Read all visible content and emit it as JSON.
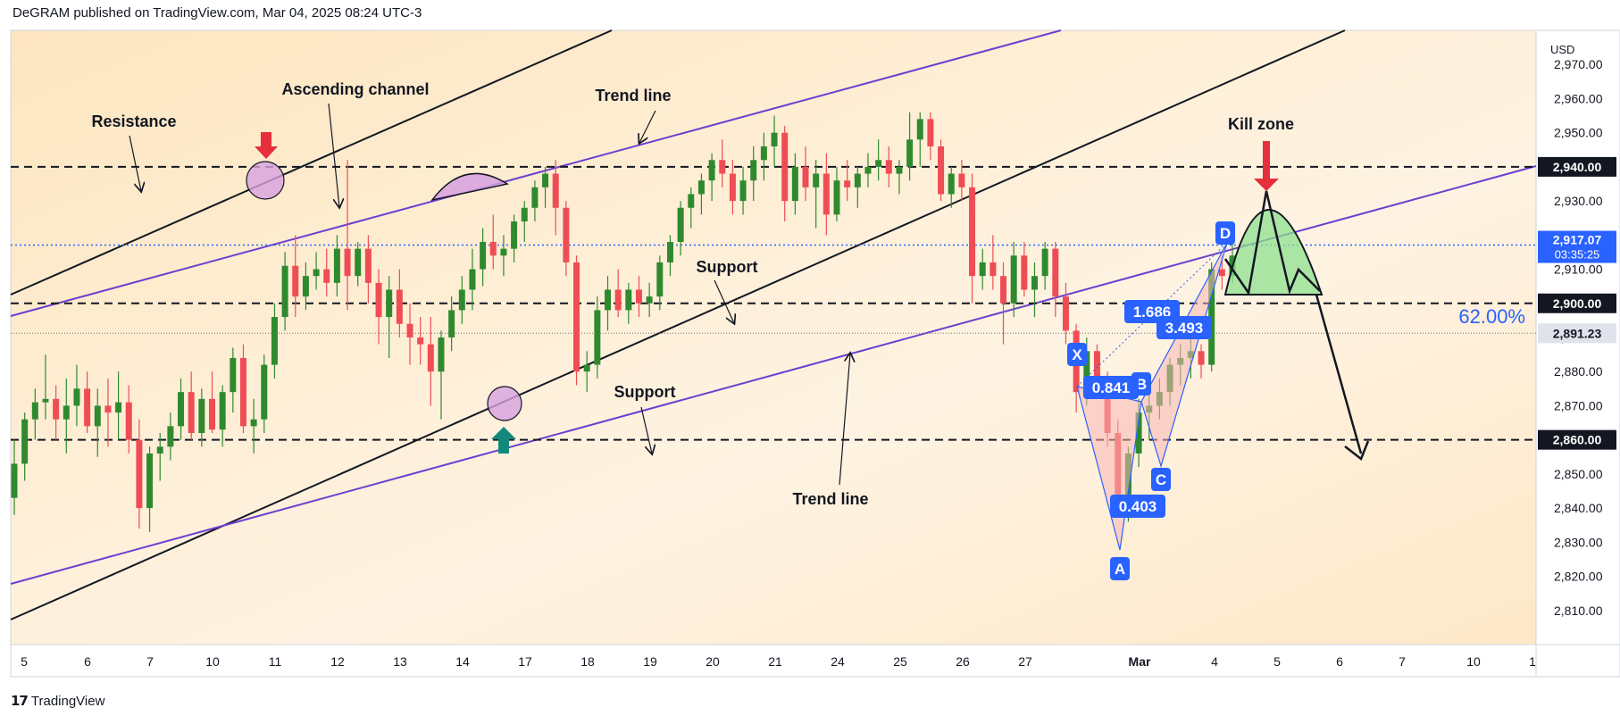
{
  "header": {
    "published": "DeGRAM published on TradingView.com, Mar 04, 2025 08:24 UTC-3"
  },
  "footer": {
    "brand": "TradingView",
    "logo": "tradingview-logo"
  },
  "colors": {
    "up": "#2f8a2f",
    "down": "#ef4d55",
    "purple": "#6c3fd0",
    "blue_label": "#2962ff",
    "bg_warm": "#fde7c6",
    "kill_zone": "#8fe08f",
    "red_arrow": "#e62e3c",
    "green_arrow": "#13897c"
  },
  "chart_data": {
    "type": "candlestick",
    "currency": "USD",
    "title": "",
    "ylim": [
      2800,
      2980
    ],
    "y_ticks": [
      "2,810.00",
      "2,820.00",
      "2,830.00",
      "2,840.00",
      "2,850.00",
      "2,860.00",
      "2,870.00",
      "2,880.00",
      "2,890.00",
      "2,900.00",
      "2,910.00",
      "2,920.00",
      "2,930.00",
      "2,940.00",
      "2,950.00",
      "2,960.00",
      "2,970.00"
    ],
    "x_ticks": [
      "5",
      "6",
      "7",
      "10",
      "11",
      "12",
      "13",
      "14",
      "17",
      "18",
      "19",
      "20",
      "21",
      "24",
      "25",
      "26",
      "27",
      "Mar",
      "4",
      "5",
      "6",
      "7",
      "10",
      "1"
    ],
    "price_labels": [
      {
        "value": 2940.0,
        "text": "2,940.00",
        "style": "black"
      },
      {
        "value": 2900.0,
        "text": "2,900.00",
        "style": "black"
      },
      {
        "value": 2891.23,
        "text": "2,891.23",
        "style": "gray"
      },
      {
        "value": 2860.0,
        "text": "2,860.00",
        "style": "black"
      },
      {
        "value": 2917.07,
        "text": "2,917.07",
        "sub": "03:35:25",
        "style": "blue"
      }
    ],
    "horizontal_levels": [
      2940,
      2900,
      2860
    ],
    "current_price": 2917.07,
    "annotations": [
      "Resistance",
      "Ascending channel",
      "Trend line",
      "Support",
      "Support",
      "Trend line",
      "Kill zone"
    ],
    "harmonic_points": {
      "X": "X",
      "A": "A",
      "B": "B",
      "C": "C",
      "D": "D"
    },
    "harmonic_ratios": [
      "0.841",
      "0.403",
      "1.686",
      "3.493"
    ],
    "fib_level": "62.00%",
    "candles": [
      [
        2843,
        2860,
        2838,
        2853
      ],
      [
        2853,
        2868,
        2848,
        2866
      ],
      [
        2866,
        2875,
        2860,
        2871
      ],
      [
        2871,
        2885,
        2866,
        2872
      ],
      [
        2872,
        2876,
        2860,
        2866
      ],
      [
        2866,
        2878,
        2856,
        2870
      ],
      [
        2870,
        2882,
        2864,
        2875
      ],
      [
        2875,
        2880,
        2862,
        2864
      ],
      [
        2864,
        2875,
        2855,
        2870
      ],
      [
        2870,
        2878,
        2858,
        2868
      ],
      [
        2868,
        2880,
        2860,
        2871
      ],
      [
        2871,
        2876,
        2856,
        2860
      ],
      [
        2860,
        2866,
        2834,
        2840
      ],
      [
        2840,
        2858,
        2833,
        2856
      ],
      [
        2856,
        2862,
        2848,
        2858
      ],
      [
        2858,
        2868,
        2854,
        2864
      ],
      [
        2864,
        2878,
        2860,
        2874
      ],
      [
        2874,
        2880,
        2860,
        2862
      ],
      [
        2862,
        2875,
        2858,
        2872
      ],
      [
        2872,
        2880,
        2862,
        2863
      ],
      [
        2863,
        2876,
        2858,
        2874
      ],
      [
        2874,
        2887,
        2868,
        2884
      ],
      [
        2884,
        2888,
        2862,
        2864
      ],
      [
        2864,
        2872,
        2856,
        2866
      ],
      [
        2866,
        2885,
        2862,
        2882
      ],
      [
        2882,
        2900,
        2878,
        2896
      ],
      [
        2896,
        2915,
        2892,
        2911
      ],
      [
        2911,
        2920,
        2896,
        2902
      ],
      [
        2902,
        2912,
        2898,
        2908
      ],
      [
        2908,
        2915,
        2904,
        2910
      ],
      [
        2910,
        2916,
        2902,
        2906
      ],
      [
        2906,
        2920,
        2902,
        2916
      ],
      [
        2916,
        2942,
        2898,
        2908
      ],
      [
        2908,
        2918,
        2905,
        2916
      ],
      [
        2916,
        2920,
        2900,
        2906
      ],
      [
        2906,
        2910,
        2888,
        2896
      ],
      [
        2896,
        2908,
        2884,
        2904
      ],
      [
        2904,
        2910,
        2890,
        2894
      ],
      [
        2894,
        2900,
        2882,
        2890
      ],
      [
        2890,
        2896,
        2882,
        2888
      ],
      [
        2888,
        2896,
        2870,
        2880
      ],
      [
        2880,
        2892,
        2866,
        2890
      ],
      [
        2890,
        2902,
        2886,
        2898
      ],
      [
        2898,
        2908,
        2894,
        2904
      ],
      [
        2904,
        2916,
        2898,
        2910
      ],
      [
        2910,
        2922,
        2905,
        2918
      ],
      [
        2918,
        2926,
        2910,
        2914
      ],
      [
        2914,
        2920,
        2908,
        2916
      ],
      [
        2916,
        2926,
        2912,
        2924
      ],
      [
        2924,
        2930,
        2918,
        2928
      ],
      [
        2928,
        2936,
        2924,
        2934
      ],
      [
        2934,
        2940,
        2928,
        2938
      ],
      [
        2938,
        2942,
        2920,
        2928
      ],
      [
        2928,
        2930,
        2908,
        2912
      ],
      [
        2912,
        2914,
        2876,
        2880
      ],
      [
        2880,
        2886,
        2874,
        2882
      ],
      [
        2882,
        2902,
        2878,
        2898
      ],
      [
        2898,
        2908,
        2892,
        2904
      ],
      [
        2904,
        2910,
        2896,
        2898
      ],
      [
        2898,
        2906,
        2894,
        2904
      ],
      [
        2904,
        2908,
        2896,
        2900
      ],
      [
        2900,
        2906,
        2896,
        2902
      ],
      [
        2902,
        2914,
        2898,
        2912
      ],
      [
        2912,
        2920,
        2908,
        2918
      ],
      [
        2918,
        2930,
        2914,
        2928
      ],
      [
        2928,
        2934,
        2922,
        2932
      ],
      [
        2932,
        2938,
        2926,
        2936
      ],
      [
        2936,
        2944,
        2930,
        2942
      ],
      [
        2942,
        2948,
        2934,
        2938
      ],
      [
        2938,
        2942,
        2926,
        2930
      ],
      [
        2930,
        2940,
        2926,
        2936
      ],
      [
        2936,
        2946,
        2930,
        2942
      ],
      [
        2942,
        2950,
        2936,
        2946
      ],
      [
        2946,
        2955,
        2940,
        2950
      ],
      [
        2950,
        2952,
        2924,
        2930
      ],
      [
        2930,
        2944,
        2926,
        2940
      ],
      [
        2940,
        2946,
        2930,
        2934
      ],
      [
        2934,
        2942,
        2922,
        2938
      ],
      [
        2938,
        2944,
        2920,
        2926
      ],
      [
        2926,
        2940,
        2924,
        2936
      ],
      [
        2936,
        2942,
        2930,
        2934
      ],
      [
        2934,
        2940,
        2928,
        2938
      ],
      [
        2938,
        2944,
        2934,
        2940
      ],
      [
        2940,
        2948,
        2936,
        2942
      ],
      [
        2942,
        2946,
        2934,
        2938
      ],
      [
        2938,
        2942,
        2932,
        2940
      ],
      [
        2940,
        2956,
        2936,
        2948
      ],
      [
        2948,
        2956,
        2940,
        2954
      ],
      [
        2954,
        2956,
        2942,
        2946
      ],
      [
        2946,
        2948,
        2930,
        2932
      ],
      [
        2932,
        2940,
        2928,
        2938
      ],
      [
        2938,
        2942,
        2930,
        2934
      ],
      [
        2934,
        2938,
        2900,
        2908
      ],
      [
        2908,
        2916,
        2904,
        2912
      ],
      [
        2912,
        2920,
        2904,
        2908
      ],
      [
        2908,
        2912,
        2888,
        2900
      ],
      [
        2900,
        2918,
        2896,
        2914
      ],
      [
        2914,
        2918,
        2902,
        2904
      ],
      [
        2904,
        2912,
        2896,
        2908
      ],
      [
        2908,
        2918,
        2904,
        2916
      ],
      [
        2916,
        2918,
        2896,
        2902
      ],
      [
        2902,
        2906,
        2888,
        2892
      ],
      [
        2892,
        2894,
        2868,
        2874
      ],
      [
        2874,
        2890,
        2870,
        2886
      ],
      [
        2886,
        2888,
        2872,
        2876
      ],
      [
        2876,
        2880,
        2858,
        2862
      ],
      [
        2862,
        2866,
        2838,
        2844
      ],
      [
        2844,
        2858,
        2836,
        2856
      ],
      [
        2856,
        2872,
        2852,
        2868
      ],
      [
        2868,
        2874,
        2860,
        2870
      ],
      [
        2870,
        2878,
        2866,
        2874
      ],
      [
        2874,
        2884,
        2870,
        2882
      ],
      [
        2882,
        2888,
        2876,
        2884
      ],
      [
        2884,
        2890,
        2878,
        2886
      ],
      [
        2886,
        2888,
        2878,
        2882
      ],
      [
        2882,
        2912,
        2880,
        2910
      ],
      [
        2910,
        2914,
        2904,
        2908
      ],
      [
        2908,
        2918,
        2906,
        2914
      ]
    ]
  }
}
